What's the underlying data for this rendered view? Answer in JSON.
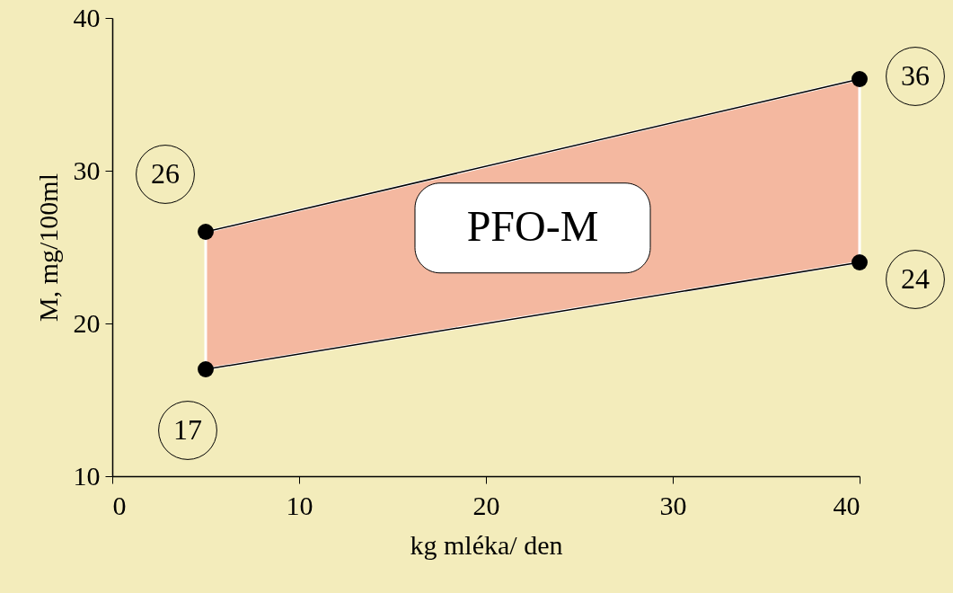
{
  "chart_data": {
    "type": "line",
    "xlabel": "kg mléka/ den",
    "ylabel": "M, mg/100ml",
    "x": [
      5,
      40
    ],
    "series": [
      {
        "color": "#000000",
        "values": [
          26,
          36
        ],
        "lower": [
          17,
          24
        ],
        "upper": [
          26,
          36
        ]
      },
      {
        "color": "#000000",
        "values": [
          17,
          24
        ]
      }
    ],
    "data_labels": true,
    "marker": "circle",
    "line_style": "solid",
    "grid": false,
    "xlim": [
      0,
      40
    ],
    "xticks": [
      0,
      10,
      20,
      30,
      40
    ],
    "ylim": [
      10,
      40
    ],
    "yticks": [
      10,
      20,
      30,
      40
    ],
    "annotations": [
      "PFO-M"
    ]
  }
}
